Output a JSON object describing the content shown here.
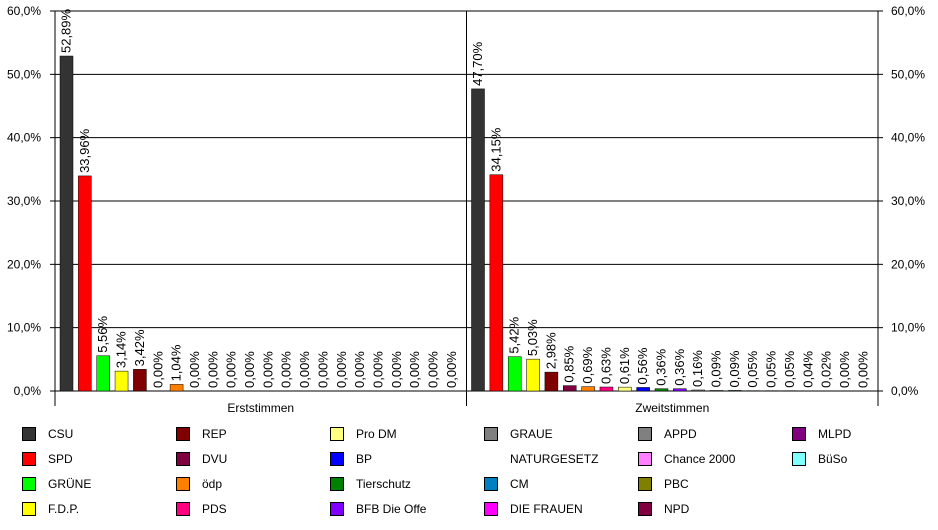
{
  "chart_data": {
    "type": "bar",
    "categories": [
      "Erststimmen",
      "Zweitstimmen"
    ],
    "ylim": [
      0,
      60
    ],
    "yticks": [
      "0,0%",
      "10,0%",
      "20,0%",
      "30,0%",
      "40,0%",
      "50,0%",
      "60,0%"
    ],
    "grid": true,
    "legend_position": "bottom",
    "series": [
      {
        "name": "CSU",
        "color": "#333333",
        "values": [
          52.89,
          47.7
        ],
        "labels": [
          "52,89%",
          "47,70%"
        ]
      },
      {
        "name": "SPD",
        "color": "#ff0000",
        "values": [
          33.96,
          34.15
        ],
        "labels": [
          "33,96%",
          "34,15%"
        ]
      },
      {
        "name": "GRÜNE",
        "color": "#00ff00",
        "values": [
          5.56,
          5.42
        ],
        "labels": [
          "5,56%",
          "5,42%"
        ]
      },
      {
        "name": "F.D.P.",
        "color": "#ffff00",
        "values": [
          3.14,
          5.03
        ],
        "labels": [
          "3,14%",
          "5,03%"
        ]
      },
      {
        "name": "REP",
        "color": "#800000",
        "values": [
          3.42,
          2.98
        ],
        "labels": [
          "3,42%",
          "2,98%"
        ]
      },
      {
        "name": "DVU",
        "color": "#800040",
        "values": [
          0.0,
          0.85
        ],
        "labels": [
          "0,00%",
          "0,85%"
        ]
      },
      {
        "name": "ödp",
        "color": "#ff8000",
        "values": [
          1.04,
          0.69
        ],
        "labels": [
          "1,04%",
          "0,69%"
        ]
      },
      {
        "name": "PDS",
        "color": "#ff0080",
        "values": [
          0.0,
          0.63
        ],
        "labels": [
          "0,00%",
          "0,63%"
        ]
      },
      {
        "name": "Pro DM",
        "color": "#ffff80",
        "values": [
          0.0,
          0.61
        ],
        "labels": [
          "0,00%",
          "0,61%"
        ]
      },
      {
        "name": "BP",
        "color": "#0000ff",
        "values": [
          0.0,
          0.56
        ],
        "labels": [
          "0,00%",
          "0,56%"
        ]
      },
      {
        "name": "Tierschutz",
        "color": "#008000",
        "values": [
          0.0,
          0.36
        ],
        "labels": [
          "0,00%",
          "0,36%"
        ]
      },
      {
        "name": "BFB Die Offe",
        "color": "#8000ff",
        "values": [
          0.0,
          0.36
        ],
        "labels": [
          "0,00%",
          "0,36%"
        ]
      },
      {
        "name": "GRAUE",
        "color": "#808080",
        "values": [
          0.0,
          0.16
        ],
        "labels": [
          "0,00%",
          "0,16%"
        ]
      },
      {
        "name": "NATURGESETZ",
        "color": "#ffffff",
        "values": [
          0.0,
          0.09
        ],
        "labels": [
          "0,00%",
          "0,09%"
        ]
      },
      {
        "name": "CM",
        "color": "#0080c0",
        "values": [
          0.0,
          0.09
        ],
        "labels": [
          "0,00%",
          "0,09%"
        ]
      },
      {
        "name": "DIE FRAUEN",
        "color": "#ff00ff",
        "values": [
          0.0,
          0.05
        ],
        "labels": [
          "0,00%",
          "0,05%"
        ]
      },
      {
        "name": "APPD",
        "color": "#808080",
        "values": [
          0.0,
          0.05
        ],
        "labels": [
          "0,00%",
          "0,05%"
        ]
      },
      {
        "name": "Chance 2000",
        "color": "#ff80ff",
        "values": [
          0.0,
          0.05
        ],
        "labels": [
          "0,00%",
          "0,05%"
        ]
      },
      {
        "name": "PBC",
        "color": "#808000",
        "values": [
          0.0,
          0.04
        ],
        "labels": [
          "0,00%",
          "0,04%"
        ]
      },
      {
        "name": "NPD",
        "color": "#800040",
        "values": [
          0.0,
          0.02
        ],
        "labels": [
          "0,00%",
          "0,02%"
        ]
      },
      {
        "name": "MLPD",
        "color": "#800080",
        "values": [
          0.0,
          0.0
        ],
        "labels": [
          "0,00%",
          "0,00%"
        ]
      },
      {
        "name": "BüSo",
        "color": "#80ffff",
        "values": [
          0.0,
          0.0
        ],
        "labels": [
          "0,00%",
          "0,00%"
        ]
      }
    ]
  }
}
